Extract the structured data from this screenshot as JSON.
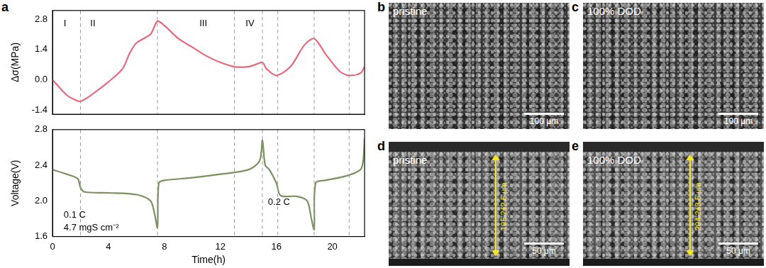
{
  "panel": "a",
  "chart_data": [
    {
      "type": "line",
      "y_label": "Δσ(MPa)",
      "x": [
        0,
        1,
        1.5,
        2,
        3,
        4,
        5,
        5.5,
        6,
        7,
        7.5,
        8,
        9,
        10,
        11,
        12,
        13,
        14,
        14.5,
        15,
        15.3,
        16,
        17,
        18,
        18.7,
        19.5,
        20.5,
        21.2,
        22,
        22.3
      ],
      "series": [
        {
          "color": "#e8697c",
          "values": [
            0.0,
            -0.7,
            -0.9,
            -1.0,
            -0.6,
            -0.1,
            0.5,
            1.2,
            1.7,
            2.1,
            2.7,
            2.5,
            1.9,
            1.5,
            1.1,
            0.8,
            0.6,
            0.6,
            0.7,
            0.8,
            0.5,
            0.2,
            0.6,
            1.6,
            1.9,
            1.2,
            0.4,
            0.2,
            0.3,
            0.6
          ]
        }
      ],
      "xlim": [
        0,
        22.3
      ],
      "xticks": [
        0,
        4,
        8,
        12,
        16,
        20
      ],
      "ylim": [
        -1.6,
        3.2
      ],
      "yticks": [
        -1.4,
        {
          "value": 0,
          "label": "0.0"
        },
        1.4,
        2.8
      ],
      "grid": false,
      "tick_labels": "y",
      "vlines": [
        2.0,
        7.5,
        13.0,
        15.0,
        16.1,
        18.7,
        21.2
      ],
      "annotations": [
        {
          "text": "I",
          "x": 0.8,
          "y": 2.6
        },
        {
          "text": "II",
          "x": 2.7,
          "y": 2.6
        },
        {
          "text": "III",
          "x": 10.5,
          "y": 2.6
        },
        {
          "text": "IV",
          "x": 13.8,
          "y": 2.6
        }
      ]
    },
    {
      "type": "line",
      "y_label": "Voltage(V)",
      "x_label": "Time(h)",
      "x": [
        0,
        1,
        1.8,
        2.0,
        2.3,
        4,
        6,
        7,
        7.3,
        7.5,
        7.6,
        8,
        10,
        12,
        14,
        14.8,
        15.0,
        15.2,
        15.5,
        16,
        16.3,
        17.5,
        18.2,
        18.5,
        18.7,
        18.8,
        19.5,
        21,
        22,
        22.2,
        22.3
      ],
      "series": [
        {
          "color": "#7b9161",
          "values": [
            2.35,
            2.3,
            2.25,
            2.15,
            2.1,
            2.09,
            2.07,
            2.0,
            1.85,
            1.7,
            2.2,
            2.23,
            2.26,
            2.3,
            2.35,
            2.45,
            2.68,
            2.4,
            2.35,
            2.2,
            2.06,
            2.05,
            2.0,
            1.8,
            1.68,
            2.2,
            2.23,
            2.28,
            2.35,
            2.45,
            2.7
          ]
        }
      ],
      "xlim": [
        0,
        22.3
      ],
      "xticks": [
        0,
        4,
        8,
        12,
        16,
        20
      ],
      "ylim": [
        1.6,
        2.8
      ],
      "yticks": [
        1.6,
        {
          "value": 2,
          "label": "2.0"
        },
        2.4,
        2.8
      ],
      "grid": false,
      "vlines": [
        2.0,
        7.5,
        13.0,
        15.0,
        16.1,
        18.7,
        21.2
      ],
      "annotations": [
        {
          "text": "0.1 C",
          "x": 0.8,
          "y": 1.84
        },
        {
          "text": "4.7 mgS cm⁻²",
          "x": 0.8,
          "y": 1.7
        },
        {
          "text": "0.2 C",
          "x": 15.4,
          "y": 1.98
        }
      ]
    }
  ],
  "images": [
    {
      "label": "b",
      "caption": "pristine",
      "scale_bar": "100 μm"
    },
    {
      "label": "c",
      "caption": "100% DOD",
      "scale_bar": "100 μm"
    },
    {
      "label": "d",
      "caption": "pristine",
      "scale_bar": "50 μm",
      "thickness": "195.2±2.6 μm"
    },
    {
      "label": "e",
      "caption": "100% DOD",
      "scale_bar": "50 μm",
      "thickness": "204.2±3.5 μm"
    }
  ]
}
